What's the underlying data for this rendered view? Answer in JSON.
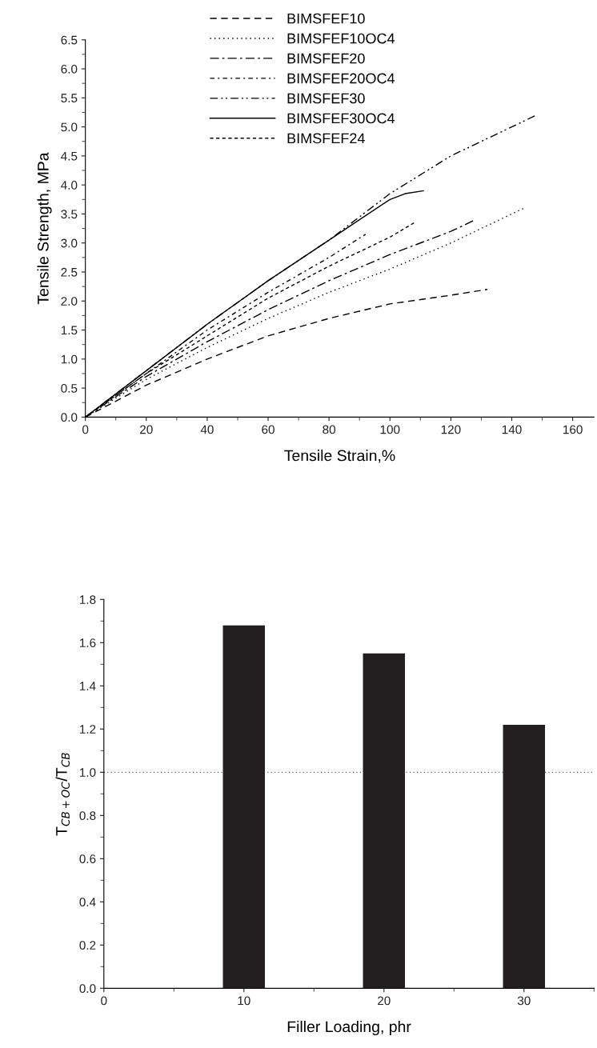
{
  "chart_data": [
    {
      "type": "line",
      "xlabel": "Tensile Strain,%",
      "ylabel": "Tensile Strength, MPa",
      "legend": "top",
      "marker": "none",
      "xlim": [
        0,
        167
      ],
      "xticks": [
        0,
        20,
        40,
        60,
        80,
        100,
        120,
        140,
        160
      ],
      "ylim": [
        0,
        6.5
      ],
      "yticks": [
        {
          "value": 0,
          "label": "0.0"
        },
        0.5,
        {
          "value": 1,
          "label": "1.0"
        },
        1.5,
        {
          "value": 2,
          "label": "2.0"
        },
        2.5,
        {
          "value": 3,
          "label": "3.0"
        },
        3.5,
        {
          "value": 4,
          "label": "4.0"
        },
        4.5,
        {
          "value": 5,
          "label": "5.0"
        },
        5.5,
        {
          "value": 6,
          "label": "6.0"
        },
        6.5
      ],
      "series": [
        {
          "name": "BIMSFEF10",
          "color": "#000000",
          "line_style": "dashed",
          "x": [
            0,
            20,
            40,
            60,
            80,
            100,
            120,
            132
          ],
          "values": [
            0,
            0.55,
            1.0,
            1.4,
            1.7,
            1.95,
            2.1,
            2.2
          ]
        },
        {
          "name": "BIMSFEF10OC4",
          "color": "#000000",
          "line_style": "dotted",
          "x": [
            0,
            20,
            40,
            60,
            80,
            100,
            120,
            144
          ],
          "values": [
            0,
            0.65,
            1.2,
            1.7,
            2.15,
            2.55,
            3.0,
            3.6
          ]
        },
        {
          "name": "BIMSFEF20",
          "color": "#000000",
          "line_style": "dashdot",
          "x": [
            0,
            20,
            40,
            60,
            80,
            100,
            120,
            128
          ],
          "values": [
            0,
            0.7,
            1.3,
            1.85,
            2.35,
            2.8,
            3.2,
            3.4
          ]
        },
        {
          "name": "BIMSFEF20OC4",
          "color": "#000000",
          "line_style": "dashdot short",
          "x": [
            0,
            20,
            40,
            60,
            80,
            92
          ],
          "values": [
            0,
            0.75,
            1.5,
            2.15,
            2.75,
            3.15
          ]
        },
        {
          "name": "BIMSFEF30",
          "color": "#000000",
          "line_style": "dashdotdot",
          "x": [
            0,
            20,
            40,
            60,
            80,
            100,
            120,
            140,
            148
          ],
          "values": [
            0,
            0.8,
            1.6,
            2.35,
            3.05,
            3.85,
            4.5,
            5.0,
            5.2
          ]
        },
        {
          "name": "BIMSFEF30OC4",
          "color": "#000000",
          "line_style": "solid",
          "x": [
            0,
            20,
            40,
            60,
            80,
            90,
            100,
            105,
            111
          ],
          "values": [
            0,
            0.8,
            1.6,
            2.35,
            3.05,
            3.4,
            3.75,
            3.85,
            3.9
          ]
        },
        {
          "name": "BIMSFEF24",
          "color": "#000000",
          "line_style": "dashed short",
          "x": [
            0,
            20,
            40,
            60,
            80,
            100,
            108
          ],
          "values": [
            0,
            0.75,
            1.4,
            2.05,
            2.6,
            3.1,
            3.35
          ]
        }
      ]
    },
    {
      "type": "bar",
      "xlabel": "Filler Loading, phr",
      "ylabel": "T$_{CB+OC}$/T$_{CB}$",
      "x": [
        10,
        20,
        30
      ],
      "values": [
        1.68,
        1.55,
        1.22
      ],
      "color": "#231f20",
      "xlim": [
        0,
        35
      ],
      "xticks": [
        0,
        10,
        20,
        30
      ],
      "ylim": [
        0,
        1.8
      ],
      "yticks": [
        {
          "value": 0,
          "label": "0.0"
        },
        0.2,
        0.4,
        0.6,
        0.8,
        {
          "value": 1,
          "label": "1.0"
        },
        1.2,
        1.4,
        1.6,
        1.8
      ],
      "ref_lines": [
        {
          "axis": "y",
          "value": 1.0,
          "color": "#555555",
          "line_style": "dotted"
        }
      ]
    }
  ]
}
